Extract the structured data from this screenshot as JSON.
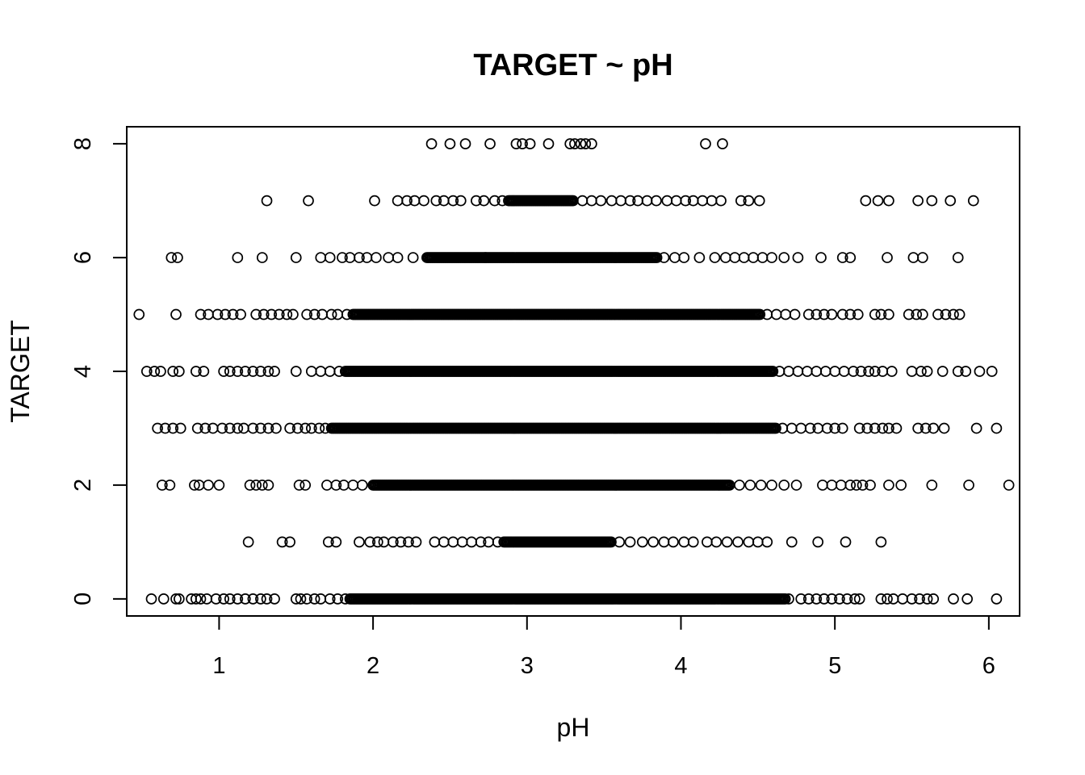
{
  "chart_data": {
    "type": "scatter",
    "title": "TARGET ~ pH",
    "xlabel": "pH",
    "ylabel": "TARGET",
    "xlim": [
      0.4,
      6.2
    ],
    "ylim": [
      -0.3,
      8.3
    ],
    "x_ticks": [
      1,
      2,
      3,
      4,
      5,
      6
    ],
    "y_ticks": [
      0,
      2,
      4,
      6,
      8
    ],
    "grid": false,
    "legend": "none",
    "marker": "open-circle",
    "rows": [
      {
        "y": 0,
        "dense": [
          1.85,
          4.68
        ],
        "x": [
          0.56,
          0.64,
          0.72,
          0.74,
          0.82,
          0.85,
          0.88,
          0.92,
          0.98,
          1.03,
          1.07,
          1.12,
          1.17,
          1.22,
          1.27,
          1.31,
          1.36,
          1.5,
          1.53,
          1.57,
          1.62,
          1.66,
          1.72,
          1.77,
          1.82,
          4.7,
          4.78,
          4.83,
          4.88,
          4.93,
          4.98,
          5.03,
          5.08,
          5.13,
          5.16,
          5.3,
          5.34,
          5.38,
          5.44,
          5.5,
          5.55,
          5.6,
          5.64,
          5.77,
          5.86,
          6.05
        ]
      },
      {
        "y": 1,
        "dense": [
          2.85,
          3.55
        ],
        "x": [
          1.19,
          1.41,
          1.46,
          1.71,
          1.76,
          1.91,
          1.98,
          2.03,
          2.07,
          2.13,
          2.18,
          2.23,
          2.28,
          2.4,
          2.46,
          2.52,
          2.58,
          2.64,
          2.7,
          2.75,
          2.81,
          3.6,
          3.67,
          3.75,
          3.82,
          3.89,
          3.95,
          4.02,
          4.08,
          4.17,
          4.23,
          4.3,
          4.37,
          4.44,
          4.5,
          4.56,
          4.72,
          4.89,
          5.07,
          5.3
        ]
      },
      {
        "y": 2,
        "dense": [
          2.0,
          4.32
        ],
        "x": [
          0.63,
          0.68,
          0.84,
          0.87,
          0.93,
          1.0,
          1.2,
          1.24,
          1.28,
          1.32,
          1.52,
          1.56,
          1.7,
          1.76,
          1.81,
          1.87,
          1.93,
          4.38,
          4.45,
          4.52,
          4.59,
          4.67,
          4.75,
          4.92,
          4.98,
          5.04,
          5.1,
          5.14,
          5.18,
          5.23,
          5.35,
          5.43,
          5.63,
          5.87,
          6.13
        ]
      },
      {
        "y": 3,
        "dense": [
          1.73,
          4.62
        ],
        "x": [
          0.6,
          0.65,
          0.7,
          0.75,
          0.86,
          0.91,
          0.96,
          1.02,
          1.07,
          1.12,
          1.16,
          1.22,
          1.27,
          1.32,
          1.37,
          1.46,
          1.51,
          1.56,
          1.6,
          1.65,
          1.69,
          4.66,
          4.72,
          4.78,
          4.84,
          4.89,
          4.95,
          5.0,
          5.05,
          5.16,
          5.21,
          5.26,
          5.31,
          5.35,
          5.4,
          5.54,
          5.59,
          5.64,
          5.71,
          5.92,
          6.05
        ]
      },
      {
        "y": 4,
        "dense": [
          1.82,
          4.6
        ],
        "x": [
          0.53,
          0.58,
          0.62,
          0.7,
          0.74,
          0.85,
          0.9,
          1.03,
          1.07,
          1.12,
          1.17,
          1.22,
          1.27,
          1.32,
          1.36,
          1.5,
          1.6,
          1.66,
          1.72,
          1.78,
          4.64,
          4.7,
          4.76,
          4.82,
          4.88,
          4.94,
          5.0,
          5.06,
          5.12,
          5.17,
          5.22,
          5.26,
          5.31,
          5.37,
          5.5,
          5.56,
          5.6,
          5.7,
          5.8,
          5.85,
          5.94,
          6.02
        ]
      },
      {
        "y": 5,
        "dense": [
          1.87,
          4.52
        ],
        "x": [
          0.48,
          0.72,
          0.88,
          0.93,
          0.99,
          1.04,
          1.09,
          1.14,
          1.24,
          1.29,
          1.34,
          1.39,
          1.44,
          1.48,
          1.57,
          1.62,
          1.67,
          1.73,
          1.77,
          1.83,
          4.56,
          4.62,
          4.68,
          4.74,
          4.83,
          4.88,
          4.93,
          4.98,
          5.05,
          5.1,
          5.15,
          5.26,
          5.3,
          5.35,
          5.48,
          5.53,
          5.57,
          5.67,
          5.72,
          5.77,
          5.81
        ]
      },
      {
        "y": 6,
        "dense": [
          2.35,
          3.85
        ],
        "x": [
          0.69,
          0.73,
          1.12,
          1.28,
          1.5,
          1.66,
          1.72,
          1.8,
          1.85,
          1.91,
          1.96,
          2.02,
          2.1,
          2.16,
          2.26,
          2.73,
          3.89,
          3.96,
          4.02,
          4.12,
          4.22,
          4.29,
          4.35,
          4.41,
          4.47,
          4.53,
          4.59,
          4.67,
          4.76,
          4.91,
          5.05,
          5.1,
          5.34,
          5.51,
          5.57,
          5.8
        ]
      },
      {
        "y": 7,
        "dense": [
          2.88,
          3.3
        ],
        "x": [
          1.31,
          1.58,
          2.01,
          2.16,
          2.22,
          2.27,
          2.33,
          2.41,
          2.46,
          2.52,
          2.57,
          2.67,
          2.72,
          2.79,
          2.84,
          3.36,
          3.42,
          3.48,
          3.55,
          3.61,
          3.67,
          3.72,
          3.78,
          3.84,
          3.91,
          3.97,
          4.03,
          4.08,
          4.14,
          4.2,
          4.26,
          4.39,
          4.44,
          4.51,
          5.2,
          5.28,
          5.35,
          5.54,
          5.63,
          5.75,
          5.9
        ]
      },
      {
        "y": 8,
        "dense": [],
        "x": [
          2.38,
          2.5,
          2.6,
          2.76,
          2.93,
          2.97,
          3.02,
          3.14,
          3.28,
          3.31,
          3.35,
          3.38,
          3.42,
          4.16,
          4.27
        ]
      }
    ]
  }
}
